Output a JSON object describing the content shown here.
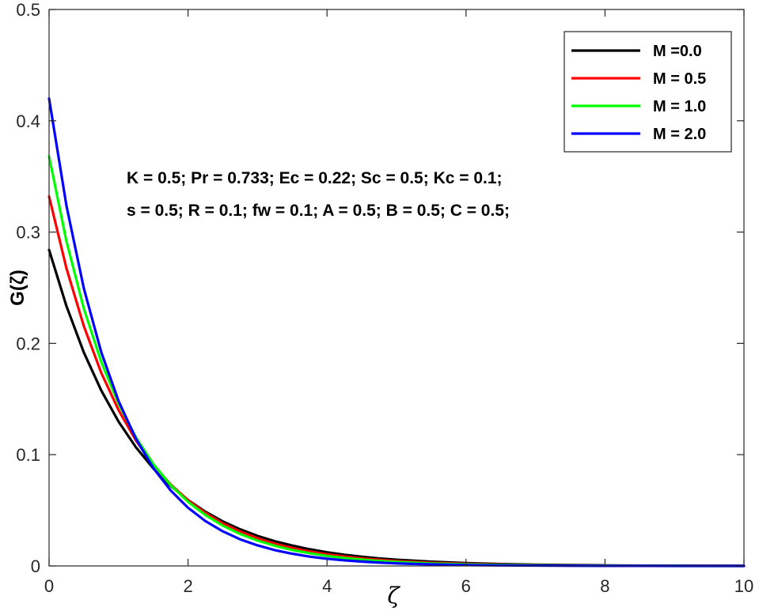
{
  "chart_data": {
    "type": "line",
    "title": "",
    "xlabel": "ζ",
    "ylabel": "G(ζ)",
    "xlim": [
      0,
      10
    ],
    "ylim": [
      0,
      0.5
    ],
    "xticks": [
      0,
      2,
      4,
      6,
      8,
      10
    ],
    "yticks": [
      0,
      0.1,
      0.2,
      0.3,
      0.4,
      0.5
    ],
    "xtick_labels": [
      "0",
      "2",
      "4",
      "6",
      "8",
      "10"
    ],
    "ytick_labels": [
      "0",
      "0.1",
      "0.2",
      "0.3",
      "0.4",
      "0.5"
    ],
    "grid": false,
    "legend_position": "top-right",
    "x": [
      0,
      0.25,
      0.5,
      0.75,
      1,
      1.25,
      1.5,
      1.75,
      2,
      2.25,
      2.5,
      2.75,
      3,
      3.25,
      3.5,
      3.75,
      4,
      4.25,
      4.5,
      4.75,
      5,
      5.5,
      6,
      6.5,
      7,
      7.5,
      8,
      8.5,
      9,
      9.5,
      10
    ],
    "series": [
      {
        "name": "M =0.0",
        "color": "#000000",
        "values": [
          0.284,
          0.2335,
          0.1919,
          0.1578,
          0.1297,
          0.1066,
          0.0876,
          0.072,
          0.0592,
          0.0487,
          0.04,
          0.0329,
          0.027,
          0.0222,
          0.0183,
          0.015,
          0.0123,
          0.0101,
          0.0083,
          0.0068,
          0.0056,
          0.0038,
          0.0026,
          0.0017,
          0.0012,
          0.0008,
          0.0005,
          0.0003,
          0.0002,
          0.0001,
          0.0001
        ]
      },
      {
        "name": "M = 0.5",
        "color": "#ff0000",
        "values": [
          0.332,
          0.2675,
          0.2156,
          0.1737,
          0.14,
          0.1128,
          0.0909,
          0.0732,
          0.059,
          0.0476,
          0.0383,
          0.0309,
          0.0249,
          0.02,
          0.0161,
          0.013,
          0.0105,
          0.0085,
          0.0068,
          0.0055,
          0.0044,
          0.0029,
          0.0019,
          0.0012,
          0.0008,
          0.0005,
          0.0003,
          0.0002,
          0.0001,
          0.0001,
          0.0
        ]
      },
      {
        "name": "M = 1.0",
        "color": "#00ff00",
        "values": [
          0.368,
          0.2918,
          0.2314,
          0.1836,
          0.1456,
          0.1155,
          0.0916,
          0.0726,
          0.0576,
          0.0457,
          0.0362,
          0.0287,
          0.0228,
          0.0181,
          0.0143,
          0.0114,
          0.009,
          0.0071,
          0.0057,
          0.0045,
          0.0036,
          0.0022,
          0.0014,
          0.0009,
          0.0006,
          0.0004,
          0.0002,
          0.0001,
          0.0001,
          0.0,
          0.0
        ]
      },
      {
        "name": "M = 2.0",
        "color": "#0000ff",
        "values": [
          0.42,
          0.3237,
          0.2495,
          0.1923,
          0.1482,
          0.1142,
          0.088,
          0.0678,
          0.0523,
          0.0403,
          0.0311,
          0.0239,
          0.0185,
          0.0142,
          0.011,
          0.0084,
          0.0065,
          0.005,
          0.0039,
          0.003,
          0.0023,
          0.0014,
          0.0008,
          0.0005,
          0.0003,
          0.0002,
          0.0001,
          0.0001,
          0.0,
          0.0,
          0.0
        ]
      }
    ],
    "annotations": [
      "K = 0.5; Pr = 0.733; Ec = 0.22; Sc = 0.5; Kc = 0.1;",
      "s = 0.5; R = 0.1; fw = 0.1; A = 0.5; B = 0.5; C = 0.5;"
    ]
  }
}
